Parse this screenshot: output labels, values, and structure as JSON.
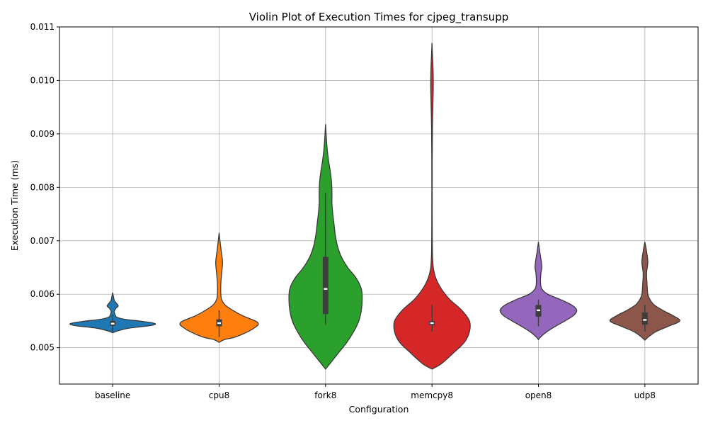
{
  "chart_data": {
    "type": "violin",
    "title": "Violin Plot of Execution Times for cjpeg_transupp",
    "xlabel": "Configuration",
    "ylabel": "Execution Time (ms)",
    "ylim": [
      0.00432,
      0.011
    ],
    "yticks": [
      0.005,
      0.006,
      0.007,
      0.008,
      0.009,
      0.01,
      0.011
    ],
    "ytick_labels": [
      "0.005",
      "0.006",
      "0.007",
      "0.008",
      "0.009",
      "0.010",
      "0.011"
    ],
    "grid": true,
    "categories": [
      "baseline",
      "cpu8",
      "fork8",
      "memcpy8",
      "open8",
      "udp8"
    ],
    "series": [
      {
        "category": "baseline",
        "color": "#1f77b4",
        "median": 0.00545,
        "q1": 0.00541,
        "q3": 0.0055,
        "whisker_low": 0.0053,
        "whisker_high": 0.00562,
        "density": [
          [
            0.00528,
            0.0
          ],
          [
            0.00532,
            0.14
          ],
          [
            0.00537,
            0.42
          ],
          [
            0.00541,
            0.86
          ],
          [
            0.00545,
            1.0
          ],
          [
            0.00549,
            0.72
          ],
          [
            0.00553,
            0.3
          ],
          [
            0.00557,
            0.1
          ],
          [
            0.00561,
            0.06
          ],
          [
            0.00565,
            0.04
          ],
          [
            0.00569,
            0.04
          ],
          [
            0.00574,
            0.08
          ],
          [
            0.00578,
            0.13
          ],
          [
            0.00583,
            0.09
          ],
          [
            0.00588,
            0.04
          ],
          [
            0.00595,
            0.02
          ],
          [
            0.00603,
            0.0
          ]
        ]
      },
      {
        "category": "cpu8",
        "color": "#ff7f0e",
        "median": 0.00546,
        "q1": 0.0054,
        "q3": 0.00553,
        "whisker_low": 0.0052,
        "whisker_high": 0.0057,
        "density": [
          [
            0.0051,
            0.0
          ],
          [
            0.00515,
            0.12
          ],
          [
            0.0052,
            0.38
          ],
          [
            0.0053,
            0.68
          ],
          [
            0.0054,
            0.88
          ],
          [
            0.00545,
            0.92
          ],
          [
            0.0055,
            0.85
          ],
          [
            0.0056,
            0.55
          ],
          [
            0.0057,
            0.32
          ],
          [
            0.0058,
            0.14
          ],
          [
            0.0059,
            0.06
          ],
          [
            0.006,
            0.04
          ],
          [
            0.0062,
            0.04
          ],
          [
            0.0064,
            0.06
          ],
          [
            0.0066,
            0.08
          ],
          [
            0.0068,
            0.05
          ],
          [
            0.007,
            0.02
          ],
          [
            0.00715,
            0.0
          ]
        ]
      },
      {
        "category": "fork8",
        "color": "#2ca02c",
        "median": 0.0061,
        "q1": 0.00563,
        "q3": 0.0067,
        "whisker_low": 0.00543,
        "whisker_high": 0.0079,
        "density": [
          [
            0.0046,
            0.0
          ],
          [
            0.0047,
            0.1
          ],
          [
            0.0049,
            0.3
          ],
          [
            0.0051,
            0.5
          ],
          [
            0.0053,
            0.66
          ],
          [
            0.0055,
            0.78
          ],
          [
            0.0057,
            0.84
          ],
          [
            0.0059,
            0.86
          ],
          [
            0.0061,
            0.84
          ],
          [
            0.0063,
            0.72
          ],
          [
            0.0065,
            0.52
          ],
          [
            0.0067,
            0.37
          ],
          [
            0.0069,
            0.28
          ],
          [
            0.0071,
            0.23
          ],
          [
            0.0073,
            0.2
          ],
          [
            0.0075,
            0.17
          ],
          [
            0.0077,
            0.15
          ],
          [
            0.0079,
            0.15
          ],
          [
            0.0081,
            0.14
          ],
          [
            0.0083,
            0.11
          ],
          [
            0.0085,
            0.07
          ],
          [
            0.0087,
            0.04
          ],
          [
            0.0089,
            0.02
          ],
          [
            0.00918,
            0.0
          ]
        ]
      },
      {
        "category": "memcpy8",
        "color": "#d62728",
        "median": 0.00546,
        "q1": 0.00542,
        "q3": 0.0055,
        "whisker_low": 0.0053,
        "whisker_high": 0.0058,
        "density": [
          [
            0.0046,
            0.0
          ],
          [
            0.0047,
            0.22
          ],
          [
            0.0049,
            0.5
          ],
          [
            0.0051,
            0.76
          ],
          [
            0.0053,
            0.88
          ],
          [
            0.0055,
            0.88
          ],
          [
            0.0057,
            0.7
          ],
          [
            0.0059,
            0.42
          ],
          [
            0.0061,
            0.22
          ],
          [
            0.0063,
            0.09
          ],
          [
            0.0065,
            0.03
          ],
          [
            0.0068,
            0.01
          ],
          [
            0.0075,
            0.005
          ],
          [
            0.0085,
            0.005
          ],
          [
            0.0091,
            0.01
          ],
          [
            0.0095,
            0.02
          ],
          [
            0.0099,
            0.03
          ],
          [
            0.0102,
            0.025
          ],
          [
            0.0105,
            0.01
          ],
          [
            0.0107,
            0.0
          ]
        ]
      },
      {
        "category": "open8",
        "color": "#9467bd",
        "median": 0.0057,
        "q1": 0.00558,
        "q3": 0.0058,
        "whisker_low": 0.0054,
        "whisker_high": 0.0059,
        "density": [
          [
            0.00515,
            0.0
          ],
          [
            0.0052,
            0.05
          ],
          [
            0.0053,
            0.2
          ],
          [
            0.0054,
            0.4
          ],
          [
            0.0055,
            0.62
          ],
          [
            0.0056,
            0.82
          ],
          [
            0.0057,
            0.9
          ],
          [
            0.0058,
            0.78
          ],
          [
            0.0059,
            0.52
          ],
          [
            0.006,
            0.22
          ],
          [
            0.0061,
            0.08
          ],
          [
            0.0062,
            0.05
          ],
          [
            0.0063,
            0.05
          ],
          [
            0.0064,
            0.06
          ],
          [
            0.0065,
            0.08
          ],
          [
            0.0066,
            0.07
          ],
          [
            0.0068,
            0.03
          ],
          [
            0.00698,
            0.0
          ]
        ]
      },
      {
        "category": "udp8",
        "color": "#8c564b",
        "median": 0.00552,
        "q1": 0.00543,
        "q3": 0.00566,
        "whisker_low": 0.0053,
        "whisker_high": 0.0058,
        "density": [
          [
            0.00514,
            0.0
          ],
          [
            0.0052,
            0.08
          ],
          [
            0.0053,
            0.26
          ],
          [
            0.0054,
            0.55
          ],
          [
            0.0055,
            0.82
          ],
          [
            0.0056,
            0.66
          ],
          [
            0.0057,
            0.42
          ],
          [
            0.0058,
            0.22
          ],
          [
            0.0059,
            0.12
          ],
          [
            0.006,
            0.07
          ],
          [
            0.0062,
            0.05
          ],
          [
            0.0064,
            0.04
          ],
          [
            0.0066,
            0.07
          ],
          [
            0.0068,
            0.04
          ],
          [
            0.00698,
            0.0
          ]
        ]
      }
    ]
  }
}
